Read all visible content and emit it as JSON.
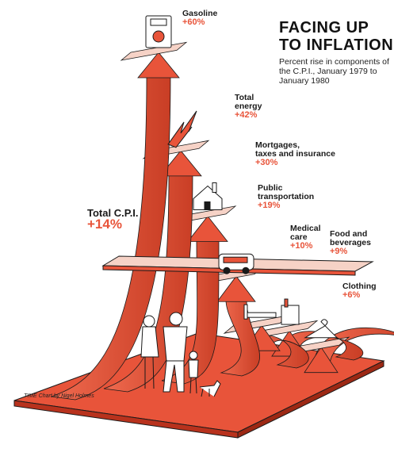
{
  "header": {
    "title_line1": "FACING UP",
    "title_line2": "TO INFLATION",
    "subtitle": "Percent rise in components of the C.P.I., January 1979 to January 1980"
  },
  "credit": "TIME Chart by Nigel Holmes",
  "total": {
    "name": "Total C.P.I.",
    "value_label": "+14%"
  },
  "colors": {
    "arrow": "#e8543a",
    "arrow_dark": "#b8321d",
    "accent_text": "#e8543a",
    "outline": "#1a1a1a"
  },
  "chart_data": {
    "type": "bar",
    "title": "FACING UP TO INFLATION",
    "subtitle": "Percent rise in components of the C.P.I., January 1979 to January 1980",
    "categories": [
      "Gasoline",
      "Total energy",
      "Mortgages, taxes and insurance",
      "Public transportation",
      "Medical care",
      "Food and beverages",
      "Clothing"
    ],
    "values": [
      60,
      42,
      30,
      19,
      10,
      9,
      6
    ],
    "value_labels": [
      "+60%",
      "+42%",
      "+30%",
      "+19%",
      "+10%",
      "+9%",
      "+6%"
    ],
    "name_lines": [
      [
        "Gasoline"
      ],
      [
        "Total",
        "energy"
      ],
      [
        "Mortgages,",
        "taxes and insurance"
      ],
      [
        "Public",
        "transportation"
      ],
      [
        "Medical",
        "care"
      ],
      [
        "Food and",
        "beverages"
      ],
      [
        "Clothing"
      ]
    ],
    "icons": [
      "gas-pump-icon",
      "lightning-bolt-icon",
      "house-icon",
      "bus-icon",
      "hospital-bed-icon",
      "grocery-bag-icon",
      "clothes-hanger-icon"
    ],
    "reference": {
      "name": "Total C.P.I.",
      "value": 14,
      "value_label": "+14%"
    },
    "ylim": [
      0,
      60
    ]
  }
}
